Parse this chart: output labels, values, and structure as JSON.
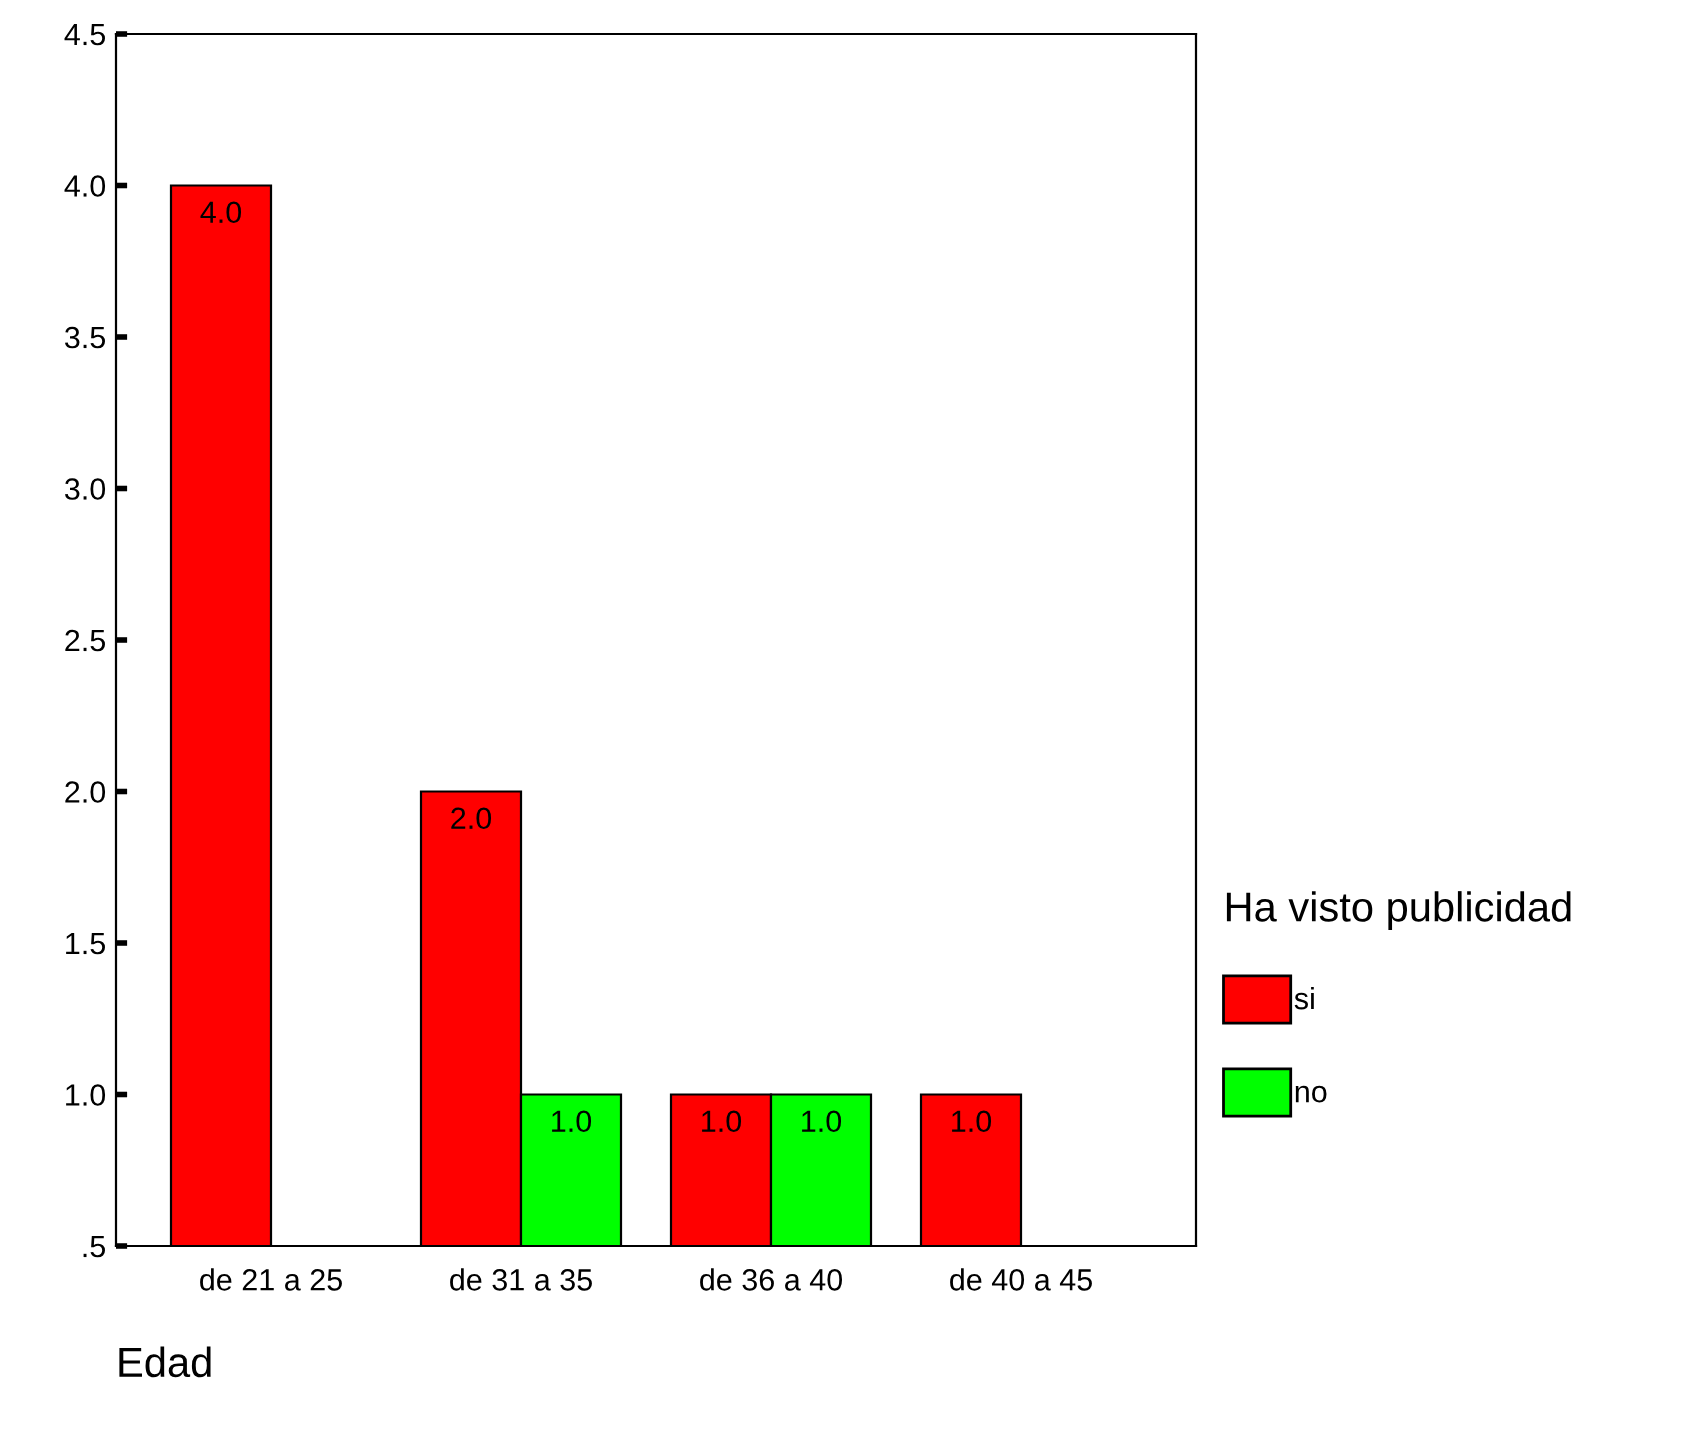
{
  "chart_data": {
    "type": "bar",
    "xlabel": "Edad",
    "legend_title": "Ha visto publicidad",
    "categories": [
      "de 21 a 25",
      "de 31 a 35",
      "de 36 a 40",
      "de 40 a 45"
    ],
    "series": [
      {
        "name": "si",
        "color": "#ff0000",
        "values": [
          4.0,
          2.0,
          1.0,
          1.0
        ],
        "value_labels": [
          "4.0",
          "2.0",
          "1.0",
          "1.0"
        ]
      },
      {
        "name": "no",
        "color": "#00ff00",
        "values": [
          null,
          1.0,
          1.0,
          null
        ],
        "value_labels": [
          null,
          "1.0",
          "1.0",
          null
        ]
      }
    ],
    "ylim": [
      0.5,
      4.5
    ],
    "yticks": [
      {
        "value": 0.5,
        "label": ".5"
      },
      {
        "value": 1.0,
        "label": "1.0"
      },
      {
        "value": 1.5,
        "label": "1.5"
      },
      {
        "value": 2.0,
        "label": "2.0"
      },
      {
        "value": 2.5,
        "label": "2.5"
      },
      {
        "value": 3.0,
        "label": "3.0"
      },
      {
        "value": 3.5,
        "label": "3.5"
      },
      {
        "value": 4.0,
        "label": "4.0"
      },
      {
        "value": 4.5,
        "label": "4.5"
      }
    ],
    "grid": false,
    "legend": "right"
  }
}
